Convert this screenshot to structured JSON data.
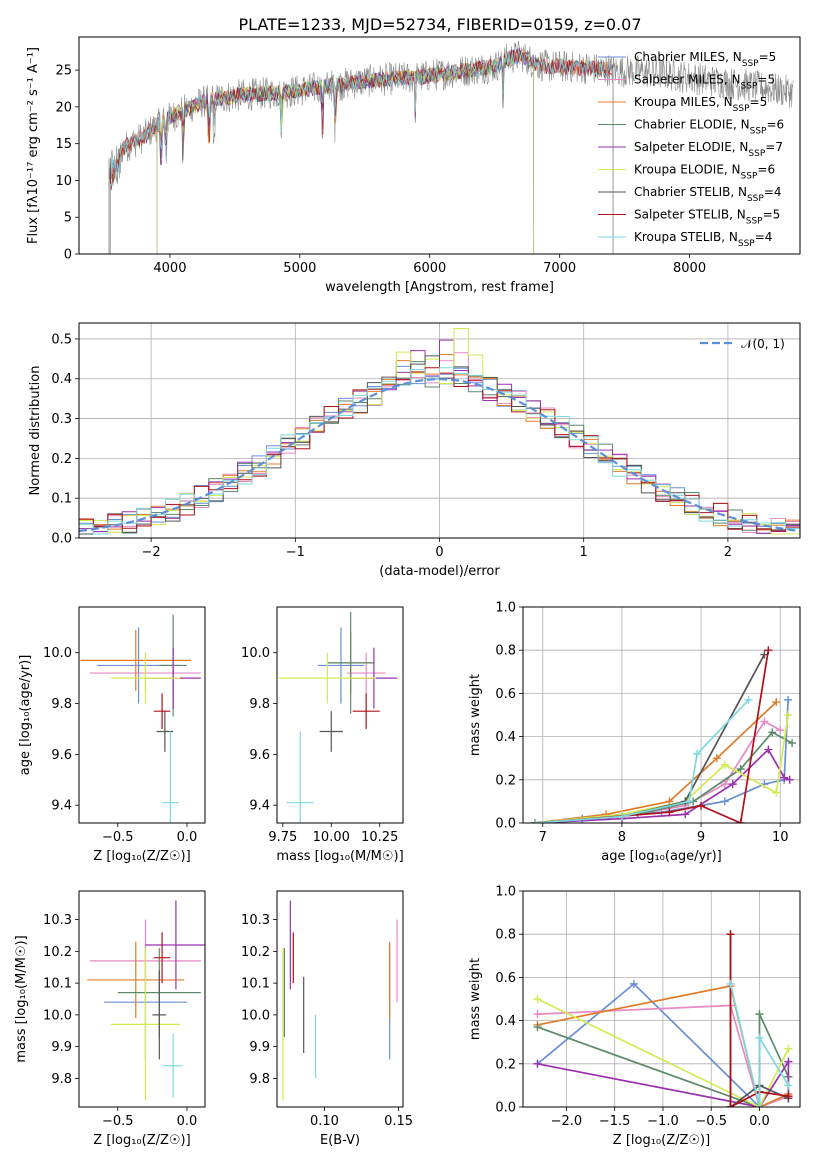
{
  "figure_title": "PLATE=1233, MJD=52734, FIBERID=0159, z=0.07",
  "colors": {
    "Chabrier MILES": "#6a8fd6",
    "Salpeter MILES": "#e78ac3",
    "Kroupa MILES": "#e07b2a",
    "Chabrier ELODIE": "#5a8a6a",
    "Salpeter ELODIE": "#9b30b0",
    "Kroupa ELODIE": "#d4ea55",
    "Chabrier STELIB": "#555555",
    "Salpeter STELIB": "#b0101a",
    "Kroupa STELIB": "#7dd8de",
    "normal_curve": "#5b8fd8",
    "grey_spectrum": "#888888"
  },
  "chart_data": [
    {
      "id": "spectrum",
      "type": "line",
      "xlabel": "wavelength [Angstrom, rest frame]",
      "ylabel": "Flux [fλ10⁻¹⁷ erg cm⁻² s⁻¹ A⁻¹]",
      "xlim": [
        3300,
        8850
      ],
      "ylim": [
        0,
        29.5
      ],
      "xticks": [
        4000,
        5000,
        6000,
        7000,
        8000
      ],
      "yticks": [
        0,
        5,
        10,
        15,
        20,
        25
      ],
      "legend_position": "upper-right",
      "legend": [
        {
          "model": "Chabrier MILES",
          "label": "Chabrier MILES, N",
          "sub": "SSP",
          "tail": "=5"
        },
        {
          "model": "Salpeter MILES",
          "label": "Salpeter MILES, N",
          "sub": "SSP",
          "tail": "=5"
        },
        {
          "model": "Kroupa MILES",
          "label": "Kroupa MILES, N",
          "sub": "SSP",
          "tail": "=5"
        },
        {
          "model": "Chabrier ELODIE",
          "label": "Chabrier ELODIE, N",
          "sub": "SSP",
          "tail": "=6"
        },
        {
          "model": "Salpeter ELODIE",
          "label": "Salpeter ELODIE, N",
          "sub": "SSP",
          "tail": "=7"
        },
        {
          "model": "Kroupa ELODIE",
          "label": "Kroupa ELODIE, N",
          "sub": "SSP",
          "tail": "=6"
        },
        {
          "model": "Chabrier STELIB",
          "label": "Chabrier STELIB, N",
          "sub": "SSP",
          "tail": "=4"
        },
        {
          "model": "Salpeter STELIB",
          "label": "Salpeter STELIB, N",
          "sub": "SSP",
          "tail": "=5"
        },
        {
          "model": "Kroupa STELIB",
          "label": "Kroupa STELIB, N",
          "sub": "SSP",
          "tail": "=4"
        }
      ],
      "continuum": {
        "x": [
          3530,
          3600,
          3700,
          3800,
          3900,
          4000,
          4100,
          4300,
          4500,
          4700,
          4900,
          5100,
          5300,
          5500,
          5700,
          5900,
          6100,
          6300,
          6500,
          6600,
          6700,
          6800,
          6900,
          7000,
          7200,
          7400,
          7600,
          7800,
          8000,
          8200,
          8400,
          8600,
          8800
        ],
        "y": [
          13.5,
          14,
          15,
          16,
          17.5,
          18.5,
          19.5,
          21,
          21.5,
          21.8,
          22,
          22.5,
          23,
          23.5,
          23.8,
          24,
          24.5,
          25,
          25.5,
          26.5,
          27,
          26,
          25.5,
          25.5,
          25.3,
          25,
          24.8,
          24.5,
          24,
          23.5,
          23,
          22.5,
          22
        ]
      },
      "model_ranges": {
        "Chabrier MILES": [
          3540,
          7410
        ],
        "Salpeter MILES": [
          3540,
          7410
        ],
        "Kroupa MILES": [
          3540,
          7410
        ],
        "Chabrier ELODIE": [
          3900,
          6800
        ],
        "Salpeter ELODIE": [
          3900,
          6800
        ],
        "Kroupa ELODIE": [
          3900,
          6800
        ],
        "Chabrier STELIB": [
          3540,
          7410
        ],
        "Salpeter STELIB": [
          3540,
          7410
        ],
        "Kroupa STELIB": [
          3540,
          7410
        ]
      },
      "observed_range": [
        3530,
        8800
      ]
    },
    {
      "id": "residuals",
      "type": "histogram",
      "xlabel": "(data-model)/error",
      "ylabel": "Normed distribution",
      "xlim": [
        -2.5,
        2.5
      ],
      "ylim": [
        0,
        0.54
      ],
      "xticks": [
        -2,
        -1,
        0,
        1,
        2
      ],
      "yticks": [
        0.0,
        0.1,
        0.2,
        0.3,
        0.4,
        0.5
      ],
      "legend_position": "upper-right",
      "legend": [
        {
          "label": "𝒩(0, 1)",
          "style": "dashed"
        }
      ],
      "bin_width": 0.1,
      "bin_start": -2.5,
      "bin_count": 50,
      "variant_peaks": {
        "Chabrier MILES": 0.46,
        "Salpeter MILES": 0.45,
        "Kroupa MILES": 0.44,
        "Chabrier ELODIE": 0.43,
        "Salpeter ELODIE": 0.48,
        "Kroupa ELODIE": 0.51,
        "Chabrier STELIB": 0.48,
        "Salpeter STELIB": 0.51,
        "Kroupa STELIB": 0.44
      }
    },
    {
      "id": "age_vs_Z",
      "type": "errorbar",
      "xlabel": "Z [log₁₀(Z/Z☉)]",
      "ylabel": "age  [log₁₀(age/yr)]",
      "xlim": [
        -0.78,
        0.13
      ],
      "ylim": [
        9.33,
        10.18
      ],
      "xticks": [
        -0.5,
        0.0
      ],
      "yticks": [
        9.4,
        9.6,
        9.8,
        10.0
      ],
      "points": {
        "Chabrier MILES": {
          "x": -0.35,
          "y": 9.95,
          "xerr": 0.3,
          "yerr": 0.15
        },
        "Salpeter MILES": {
          "x": -0.3,
          "y": 9.92,
          "xerr": 0.4,
          "yerr": 0.08
        },
        "Kroupa MILES": {
          "x": -0.37,
          "y": 9.97,
          "xerr": 0.4,
          "yerr": 0.12
        },
        "Chabrier ELODIE": {
          "x": -0.1,
          "y": 9.95,
          "xerr": 0.1,
          "yerr": 0.2
        },
        "Salpeter ELODIE": {
          "x": -0.1,
          "y": 9.9,
          "xerr": 0.2,
          "yerr": 0.12
        },
        "Kroupa ELODIE": {
          "x": -0.3,
          "y": 9.9,
          "xerr": 0.25,
          "yerr": 0.1
        },
        "Chabrier STELIB": {
          "x": -0.16,
          "y": 9.69,
          "xerr": 0.06,
          "yerr": 0.08
        },
        "Salpeter STELIB": {
          "x": -0.18,
          "y": 9.77,
          "xerr": 0.06,
          "yerr": 0.07
        },
        "Kroupa STELIB": {
          "x": -0.12,
          "y": 9.41,
          "xerr": 0.06,
          "yerr": 0.28
        }
      }
    },
    {
      "id": "age_vs_mass",
      "type": "errorbar",
      "xlabel": "mass [log₁₀(M/M☉)]",
      "ylabel": "",
      "xlim": [
        9.72,
        10.37
      ],
      "ylim": [
        9.33,
        10.18
      ],
      "xticks": [
        9.75,
        10.0,
        10.25
      ],
      "yticks": [
        9.4,
        9.6,
        9.8,
        10.0
      ],
      "points": {
        "Chabrier MILES": {
          "x": 10.05,
          "y": 9.95,
          "xerr": 0.12,
          "yerr": 0.15
        },
        "Salpeter MILES": {
          "x": 10.18,
          "y": 9.92,
          "xerr": 0.1,
          "yerr": 0.08
        },
        "Kroupa MILES": {
          "x": 10.1,
          "y": 9.96,
          "xerr": 0.12,
          "yerr": 0.12
        },
        "Chabrier ELODIE": {
          "x": 10.1,
          "y": 9.96,
          "xerr": 0.12,
          "yerr": 0.2
        },
        "Salpeter ELODIE": {
          "x": 10.22,
          "y": 9.9,
          "xerr": 0.12,
          "yerr": 0.12
        },
        "Kroupa ELODIE": {
          "x": 9.98,
          "y": 9.9,
          "xerr": 0.25,
          "yerr": 0.1
        },
        "Chabrier STELIB": {
          "x": 10.0,
          "y": 9.69,
          "xerr": 0.06,
          "yerr": 0.08
        },
        "Salpeter STELIB": {
          "x": 10.18,
          "y": 9.77,
          "xerr": 0.07,
          "yerr": 0.07
        },
        "Kroupa STELIB": {
          "x": 9.84,
          "y": 9.41,
          "xerr": 0.07,
          "yerr": 0.28
        }
      }
    },
    {
      "id": "weight_vs_age",
      "type": "line",
      "xlabel": "age  [log₁₀(age/yr)]",
      "ylabel": "mass weight",
      "xlim": [
        6.75,
        10.25
      ],
      "ylim": [
        0,
        1.0
      ],
      "xticks": [
        7,
        8,
        9,
        10
      ],
      "yticks": [
        0.0,
        0.2,
        0.4,
        0.6,
        0.8,
        1.0
      ],
      "series": [
        {
          "model": "Chabrier MILES",
          "x": [
            6.9,
            7.5,
            8.5,
            9.3,
            9.8,
            10.05,
            10.1
          ],
          "y": [
            0.0,
            0.02,
            0.05,
            0.1,
            0.18,
            0.2,
            0.57
          ]
        },
        {
          "model": "Salpeter MILES",
          "x": [
            6.9,
            8.0,
            8.8,
            9.3,
            9.8,
            10.0
          ],
          "y": [
            0.0,
            0.03,
            0.08,
            0.18,
            0.47,
            0.43
          ]
        },
        {
          "model": "Kroupa MILES",
          "x": [
            6.9,
            7.8,
            8.6,
            9.2,
            9.95
          ],
          "y": [
            0.0,
            0.04,
            0.1,
            0.3,
            0.56
          ]
        },
        {
          "model": "Chabrier ELODIE",
          "x": [
            6.9,
            8.2,
            8.9,
            9.5,
            9.9,
            10.15
          ],
          "y": [
            0.0,
            0.04,
            0.1,
            0.25,
            0.42,
            0.37
          ]
        },
        {
          "model": "Salpeter ELODIE",
          "x": [
            6.9,
            8.0,
            8.8,
            9.4,
            9.85,
            10.05,
            10.12
          ],
          "y": [
            0.0,
            0.02,
            0.04,
            0.18,
            0.34,
            0.21,
            0.2
          ]
        },
        {
          "model": "Kroupa ELODIE",
          "x": [
            6.9,
            8.0,
            8.8,
            9.3,
            9.95,
            10.1
          ],
          "y": [
            0.0,
            0.04,
            0.1,
            0.27,
            0.14,
            0.5
          ]
        },
        {
          "model": "Chabrier STELIB",
          "x": [
            6.9,
            8.0,
            8.8,
            9.8
          ],
          "y": [
            0.0,
            0.03,
            0.1,
            0.78
          ]
        },
        {
          "model": "Salpeter STELIB",
          "x": [
            6.9,
            8.6,
            9.0,
            9.5,
            9.85
          ],
          "y": [
            0.0,
            0.05,
            0.08,
            0.0,
            0.8
          ]
        },
        {
          "model": "Kroupa STELIB",
          "x": [
            6.9,
            8.0,
            8.85,
            8.95,
            9.6
          ],
          "y": [
            0.0,
            0.03,
            0.1,
            0.32,
            0.57
          ]
        }
      ]
    },
    {
      "id": "mass_vs_Z",
      "type": "errorbar",
      "xlabel": "Z [log₁₀(Z/Z☉)]",
      "ylabel": "mass [log₁₀(M/M☉)]",
      "xlim": [
        -0.78,
        0.13
      ],
      "ylim": [
        9.71,
        10.39
      ],
      "xticks": [
        -0.5,
        0.0
      ],
      "yticks": [
        9.8,
        9.9,
        10.0,
        10.1,
        10.2,
        10.3
      ],
      "points": {
        "Chabrier MILES": {
          "x": -0.3,
          "y": 10.04,
          "xerr": 0.3,
          "yerr": 0.18
        },
        "Salpeter MILES": {
          "x": -0.3,
          "y": 10.17,
          "xerr": 0.4,
          "yerr": 0.13
        },
        "Kroupa MILES": {
          "x": -0.37,
          "y": 10.11,
          "xerr": 0.35,
          "yerr": 0.12
        },
        "Chabrier ELODIE": {
          "x": -0.2,
          "y": 10.07,
          "xerr": 0.3,
          "yerr": 0.14
        },
        "Salpeter ELODIE": {
          "x": -0.08,
          "y": 10.22,
          "xerr": 0.22,
          "yerr": 0.14
        },
        "Kroupa ELODIE": {
          "x": -0.3,
          "y": 9.97,
          "xerr": 0.25,
          "yerr": 0.24
        },
        "Chabrier STELIB": {
          "x": -0.2,
          "y": 10.0,
          "xerr": 0.05,
          "yerr": 0.14
        },
        "Salpeter STELIB": {
          "x": -0.18,
          "y": 10.18,
          "xerr": 0.06,
          "yerr": 0.08
        },
        "Kroupa STELIB": {
          "x": -0.1,
          "y": 9.84,
          "xerr": 0.07,
          "yerr": 0.1
        }
      }
    },
    {
      "id": "mass_vs_ebv",
      "type": "errorbar",
      "xlabel": "E(B-V)",
      "ylabel": "",
      "xlim": [
        0.068,
        0.153
      ],
      "ylim": [
        9.71,
        10.39
      ],
      "xticks": [
        0.1,
        0.15
      ],
      "yticks": [
        9.8,
        9.9,
        10.0,
        10.1,
        10.2,
        10.3
      ],
      "points": {
        "Chabrier MILES": {
          "x": 0.144,
          "y": 10.04,
          "xerr": 0,
          "yerr": 0.18
        },
        "Salpeter MILES": {
          "x": 0.149,
          "y": 10.17,
          "xerr": 0,
          "yerr": 0.13
        },
        "Kroupa MILES": {
          "x": 0.144,
          "y": 10.11,
          "xerr": 0,
          "yerr": 0.12
        },
        "Chabrier ELODIE": {
          "x": 0.073,
          "y": 10.07,
          "xerr": 0,
          "yerr": 0.14
        },
        "Salpeter ELODIE": {
          "x": 0.077,
          "y": 10.22,
          "xerr": 0,
          "yerr": 0.14
        },
        "Kroupa ELODIE": {
          "x": 0.072,
          "y": 9.97,
          "xerr": 0,
          "yerr": 0.24
        },
        "Chabrier STELIB": {
          "x": 0.086,
          "y": 10.0,
          "xerr": 0,
          "yerr": 0.12
        },
        "Salpeter STELIB": {
          "x": 0.079,
          "y": 10.18,
          "xerr": 0,
          "yerr": 0.08
        },
        "Kroupa STELIB": {
          "x": 0.094,
          "y": 9.9,
          "xerr": 0,
          "yerr": 0.1
        }
      }
    },
    {
      "id": "weight_vs_Z",
      "type": "line",
      "xlabel": "Z [log₁₀(Z/Z☉)]",
      "ylabel": "mass weight",
      "xlim": [
        -2.45,
        0.42
      ],
      "ylim": [
        0,
        1.0
      ],
      "xticks": [
        -2.0,
        -1.5,
        -1.0,
        -0.5,
        0.0
      ],
      "yticks": [
        0.0,
        0.2,
        0.4,
        0.6,
        0.8,
        1.0
      ],
      "series": [
        {
          "model": "Chabrier MILES",
          "x": [
            -2.3,
            -1.3,
            0.0,
            0.3
          ],
          "y": [
            0.2,
            0.57,
            0.0,
            0.05
          ]
        },
        {
          "model": "Salpeter MILES",
          "x": [
            -2.3,
            -0.3,
            0.0,
            0.3
          ],
          "y": [
            0.43,
            0.47,
            0.0,
            0.05
          ]
        },
        {
          "model": "Kroupa MILES",
          "x": [
            -2.3,
            -0.3,
            0.0,
            0.3
          ],
          "y": [
            0.38,
            0.56,
            0.0,
            0.06
          ]
        },
        {
          "model": "Chabrier ELODIE",
          "x": [
            -2.3,
            0.0,
            0.0,
            0.3
          ],
          "y": [
            0.37,
            0.0,
            0.43,
            0.14
          ]
        },
        {
          "model": "Salpeter ELODIE",
          "x": [
            -2.3,
            0.0,
            0.3,
            0.3
          ],
          "y": [
            0.2,
            0.0,
            0.21,
            0.04
          ]
        },
        {
          "model": "Kroupa ELODIE",
          "x": [
            -2.3,
            0.0,
            0.3
          ],
          "y": [
            0.5,
            0.0,
            0.27
          ]
        },
        {
          "model": "Chabrier STELIB",
          "x": [
            -0.3,
            -0.3,
            0.0,
            0.3
          ],
          "y": [
            0.8,
            0.0,
            0.1,
            0.04
          ]
        },
        {
          "model": "Salpeter STELIB",
          "x": [
            -0.3,
            -0.3,
            0.0,
            0.3
          ],
          "y": [
            0.8,
            0.0,
            0.07,
            0.05
          ]
        },
        {
          "model": "Kroupa STELIB",
          "x": [
            -0.3,
            0.0,
            0.0,
            0.3
          ],
          "y": [
            0.57,
            0.0,
            0.32,
            0.1
          ]
        }
      ]
    }
  ]
}
